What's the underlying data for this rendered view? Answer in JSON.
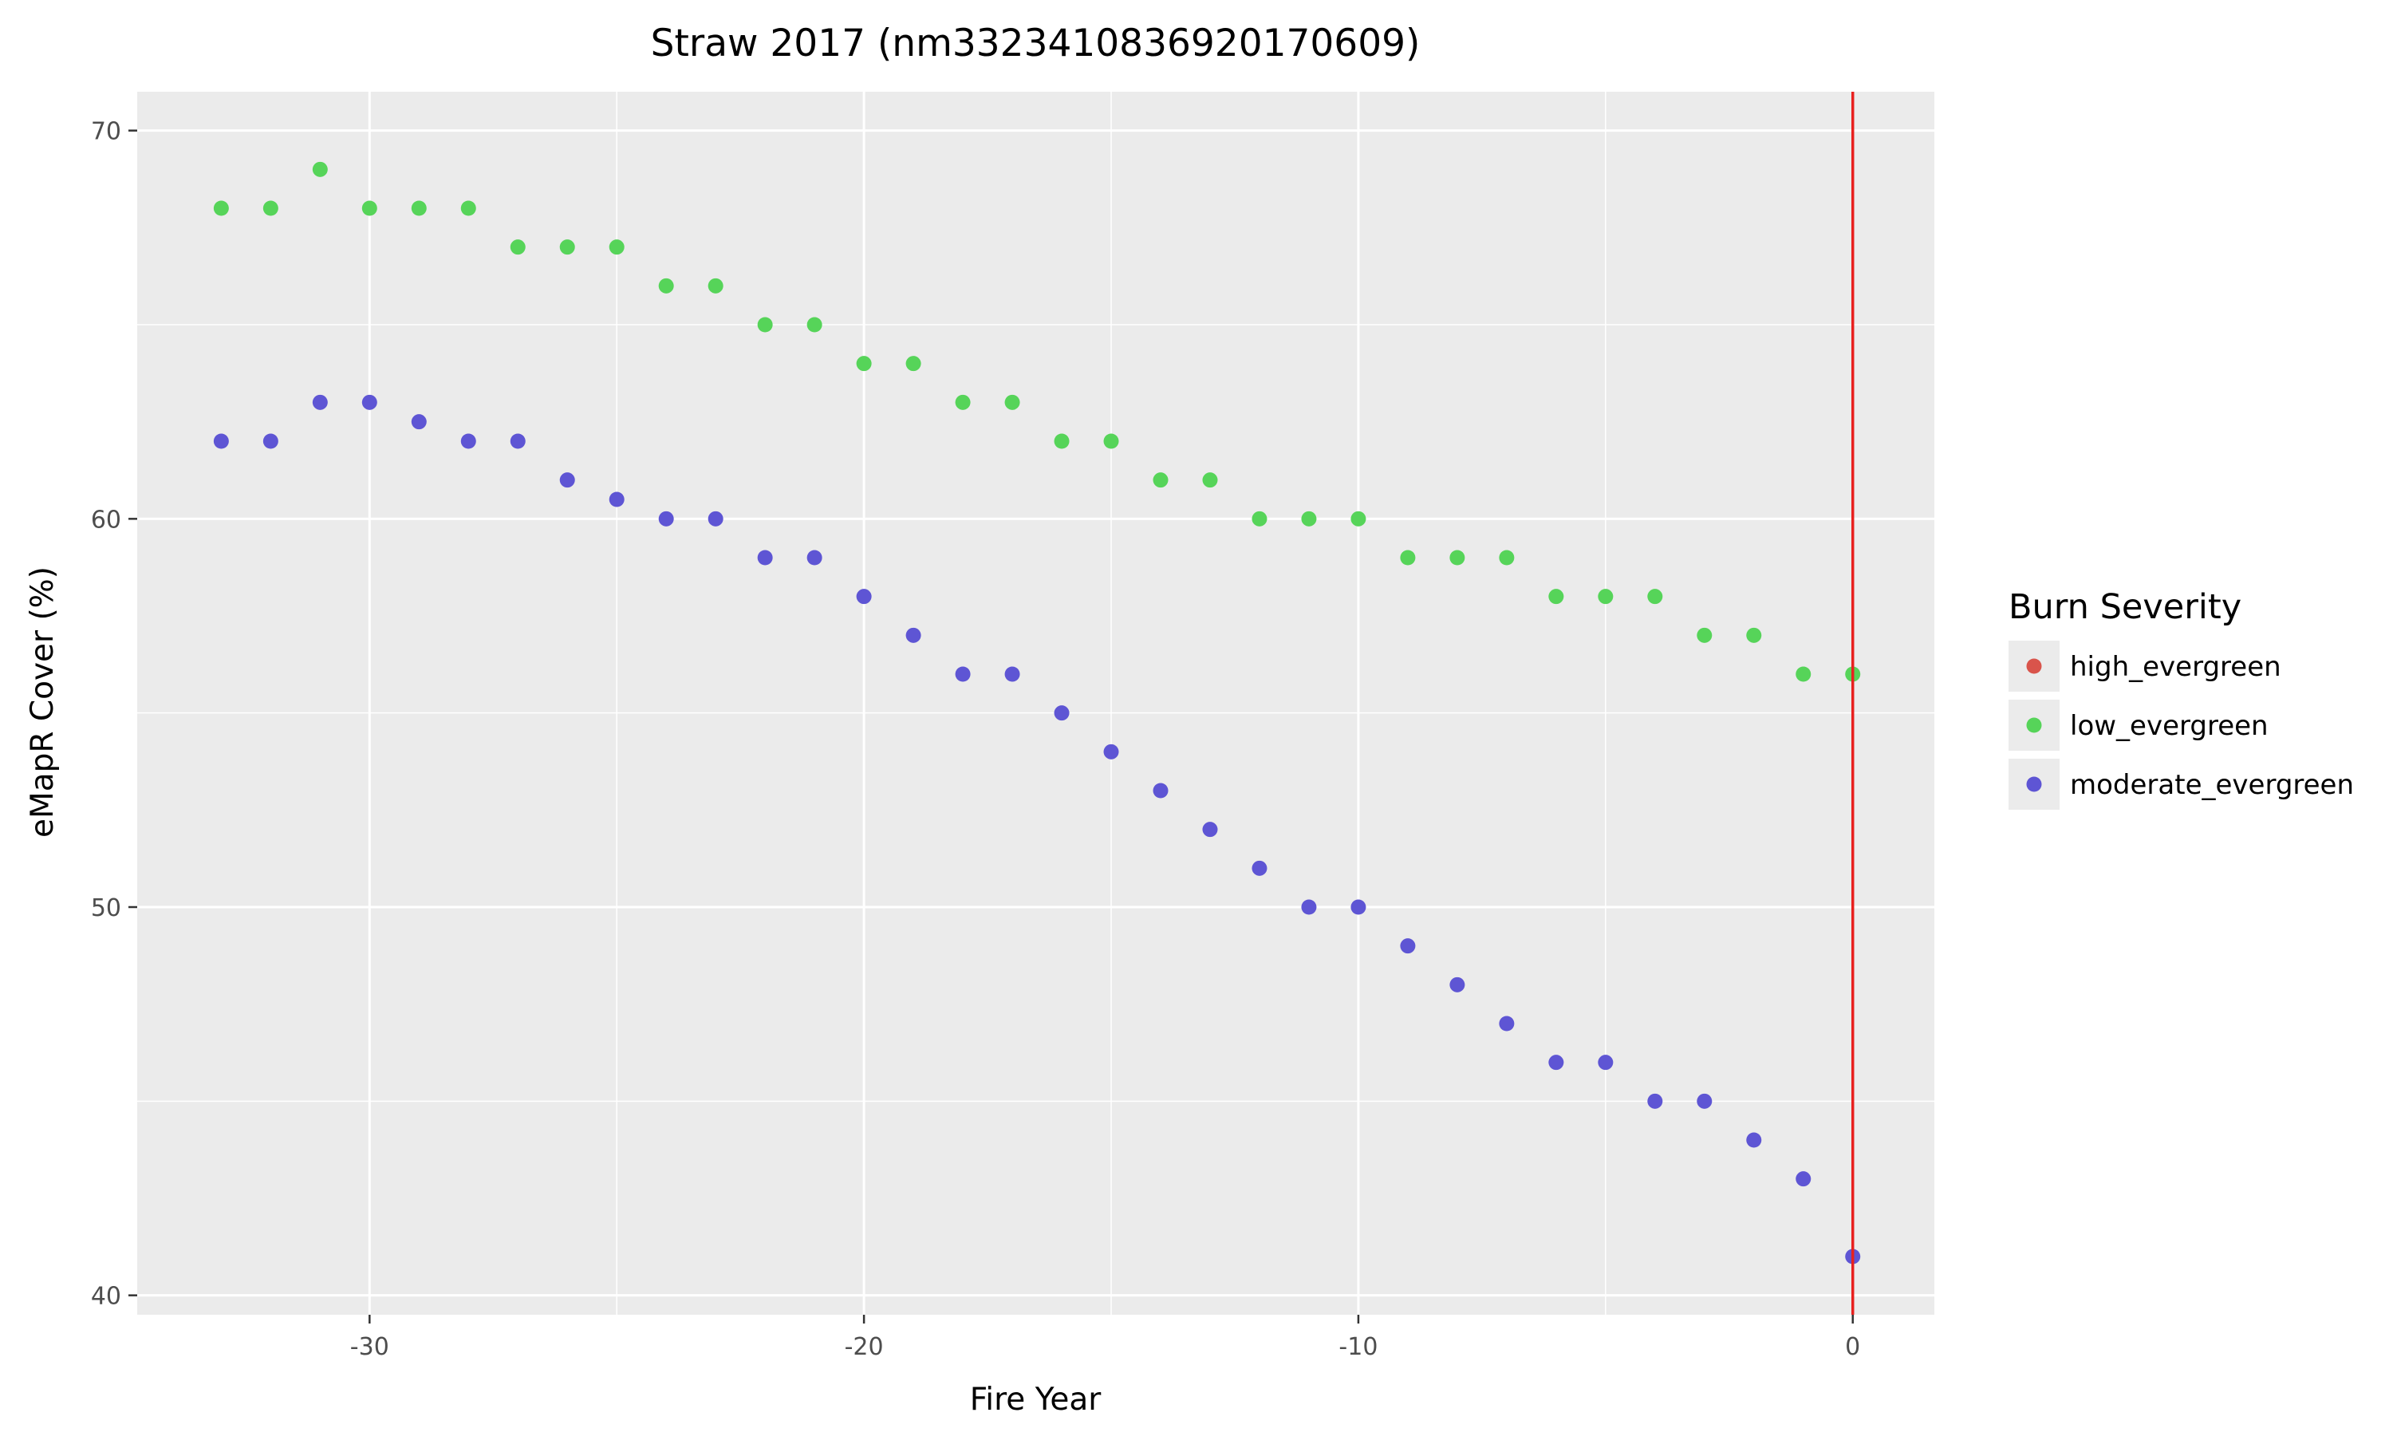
{
  "chart_data": {
    "type": "scatter",
    "title": "Straw 2017 (nm3323410836920170609)",
    "xlabel": "Fire Year",
    "ylabel": "eMapR Cover (%)",
    "xlim": [
      -34.7,
      1.65
    ],
    "ylim": [
      39.5,
      71
    ],
    "x_ticks": [
      -30,
      -20,
      -10,
      0
    ],
    "y_ticks": [
      40,
      50,
      60,
      70
    ],
    "x_tick_labels": [
      "-30",
      "-20",
      "-10",
      "0"
    ],
    "y_tick_labels": [
      "40",
      "50",
      "60",
      "70"
    ],
    "grid": true,
    "vline": {
      "x": 0,
      "color": "#e8211f"
    },
    "legend": {
      "title": "Burn Severity",
      "position": "right",
      "entries": [
        {
          "name": "high_evergreen",
          "color": "#d9544b"
        },
        {
          "name": "low_evergreen",
          "color": "#56d459"
        },
        {
          "name": "moderate_evergreen",
          "color": "#5e55d4"
        }
      ]
    },
    "series": [
      {
        "name": "high_evergreen",
        "color": "#d9544b",
        "x": [],
        "y": []
      },
      {
        "name": "low_evergreen",
        "color": "#56d459",
        "x": [
          -33,
          -32,
          -31,
          -30,
          -29,
          -28,
          -27,
          -26,
          -25,
          -24,
          -23,
          -22,
          -21,
          -20,
          -19,
          -18,
          -17,
          -16,
          -15,
          -14,
          -13,
          -12,
          -11,
          -10,
          -9,
          -8,
          -7,
          -6,
          -5,
          -4,
          -3,
          -2,
          -1,
          0
        ],
        "y": [
          68,
          68,
          69,
          68,
          68,
          68,
          67,
          67,
          67,
          66,
          66,
          65,
          65,
          64,
          64,
          63,
          63,
          62,
          62,
          61,
          61,
          60,
          60,
          60,
          59,
          59,
          59,
          58,
          58,
          58,
          57,
          57,
          56,
          56
        ]
      },
      {
        "name": "moderate_evergreen",
        "color": "#5e55d4",
        "x": [
          -33,
          -32,
          -31,
          -30,
          -29,
          -28,
          -27,
          -26,
          -25,
          -24,
          -23,
          -22,
          -21,
          -20,
          -19,
          -18,
          -17,
          -16,
          -15,
          -14,
          -13,
          -12,
          -11,
          -10,
          -9,
          -8,
          -7,
          -6,
          -5,
          -4,
          -3,
          -2,
          -1,
          0
        ],
        "y": [
          62,
          62,
          63,
          63,
          62.5,
          62,
          62,
          61,
          60.5,
          60,
          60,
          59,
          59,
          58,
          57,
          56,
          56,
          55,
          54,
          53,
          52,
          51,
          50,
          50,
          49,
          48,
          47,
          46,
          46,
          45,
          45,
          44,
          43,
          41
        ]
      }
    ]
  }
}
